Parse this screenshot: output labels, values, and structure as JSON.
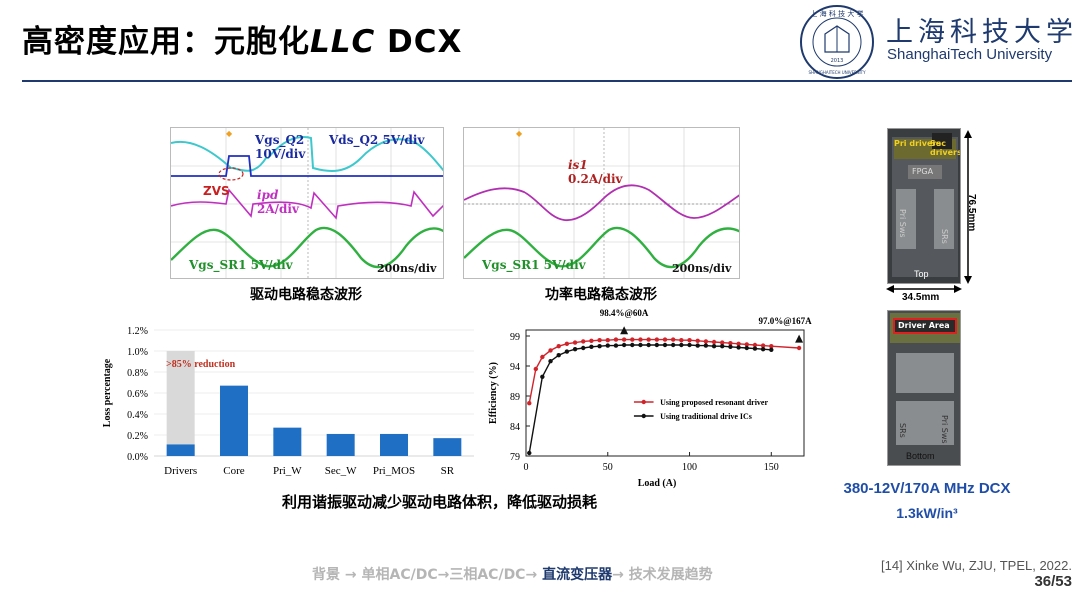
{
  "slide": {
    "title_main": "高密度应用：元胞化",
    "title_italic": "LLC",
    "title_tail": " DCX",
    "university_cn": "上海科技大学",
    "university_en": "ShanghaiTech University",
    "seal_text": "上海科技大学",
    "seal_year": "2013",
    "seal_en": "SHANGHAITECH UNIVERSITY"
  },
  "scope1": {
    "caption": "驱动电路稳态波形",
    "label_vgs_q2": "Vgs_Q2",
    "label_vgs_q2_scale": "10V/div",
    "label_vds_q2": "Vds_Q2",
    "label_vds_q2_scale": "5V/div",
    "label_zvs": "ZVS",
    "label_ipd": "ipd",
    "label_ipd_scale": "2A/div",
    "label_vgs_sr1": "Vgs_SR1",
    "label_vgs_sr1_scale": "5V/div",
    "timebase": "200ns/div"
  },
  "scope2": {
    "caption": "功率电路稳态波形",
    "label_is1": "is1",
    "label_is1_scale": "0.2A/div",
    "label_vgs_sr1": "Vgs_SR1",
    "label_vgs_sr1_scale": "5V/div",
    "timebase": "200ns/div"
  },
  "bottom_caption": "利用谐振驱动减少驱动电路体积，降低驱动损耗",
  "board": {
    "height_label": "76.5mm",
    "width_label": "34.5mm",
    "top_label": "Top",
    "bottom_label": "Bottom",
    "fpga_label": "FPGA",
    "pri_drivers": "Pri drivers",
    "sec_drivers": "Sec drivers",
    "pri_sws": "Pri Sws",
    "srs": "SRs",
    "driver_area": "Driver Area",
    "spec_line1": "380-12V/170A MHz DCX",
    "spec_line2": "1.3kW/in³"
  },
  "footer": {
    "nav_1": "背景",
    "nav_2": "单相AC/DC",
    "nav_3": "三相AC/DC",
    "nav_current": "直流变压器",
    "nav_5": "技术发展趋势",
    "reference": "[14] Xinke Wu, ZJU, TPEL, 2022.",
    "page": "36/53"
  },
  "chart_data": [
    {
      "type": "bar",
      "ylabel": "Loss percentage",
      "annotation": ">85% reduction",
      "categories": [
        "Drivers",
        "Core",
        "Pri_W",
        "Sec_W",
        "Pri_MOS",
        "SR"
      ],
      "ylim": [
        0,
        1.2
      ],
      "yticks": [
        "0.0%",
        "0.2%",
        "0.4%",
        "0.6%",
        "0.8%",
        "1.0%",
        "1.2%"
      ],
      "series": [
        {
          "values": [
            0.11,
            0.67,
            0.27,
            0.21,
            0.21,
            0.17
          ],
          "color": "#1f6fc5"
        },
        {
          "values": [
            1.0,
            null,
            null,
            null,
            null,
            null
          ],
          "color": "#d9d9d9"
        }
      ]
    },
    {
      "type": "line",
      "xlabel": "Load (A)",
      "ylabel": "Efficiency (%)",
      "xlim": [
        0,
        170
      ],
      "ylim": [
        79,
        100
      ],
      "xticks": [
        0,
        50,
        100,
        150
      ],
      "yticks": [
        79,
        84,
        89,
        94,
        99
      ],
      "annotations": [
        "98.4%@60A",
        "97.0%@167A"
      ],
      "series": [
        {
          "name": "Using proposed resonant driver",
          "color": "#d0242b",
          "x": [
            2,
            6,
            10,
            15,
            20,
            25,
            30,
            35,
            40,
            45,
            50,
            55,
            60,
            65,
            70,
            75,
            80,
            85,
            90,
            95,
            100,
            105,
            110,
            115,
            120,
            125,
            130,
            135,
            140,
            145,
            150,
            167
          ],
          "y": [
            87.8,
            93.5,
            95.5,
            96.6,
            97.3,
            97.7,
            97.9,
            98.1,
            98.2,
            98.3,
            98.3,
            98.4,
            98.4,
            98.4,
            98.4,
            98.4,
            98.4,
            98.4,
            98.4,
            98.3,
            98.3,
            98.2,
            98.1,
            98.0,
            97.9,
            97.8,
            97.7,
            97.6,
            97.5,
            97.4,
            97.3,
            97.0
          ]
        },
        {
          "name": "Using traditional drive ICs",
          "color": "#111111",
          "x": [
            2,
            10,
            15,
            20,
            25,
            30,
            35,
            40,
            45,
            50,
            55,
            60,
            65,
            70,
            75,
            80,
            85,
            90,
            95,
            100,
            105,
            110,
            115,
            120,
            125,
            130,
            135,
            140,
            145,
            150
          ],
          "y": [
            79.5,
            92.2,
            94.8,
            95.8,
            96.4,
            96.8,
            97.0,
            97.2,
            97.3,
            97.4,
            97.4,
            97.5,
            97.5,
            97.5,
            97.5,
            97.5,
            97.5,
            97.5,
            97.5,
            97.5,
            97.4,
            97.4,
            97.3,
            97.3,
            97.2,
            97.1,
            97.0,
            96.9,
            96.8,
            96.7
          ]
        }
      ]
    }
  ]
}
